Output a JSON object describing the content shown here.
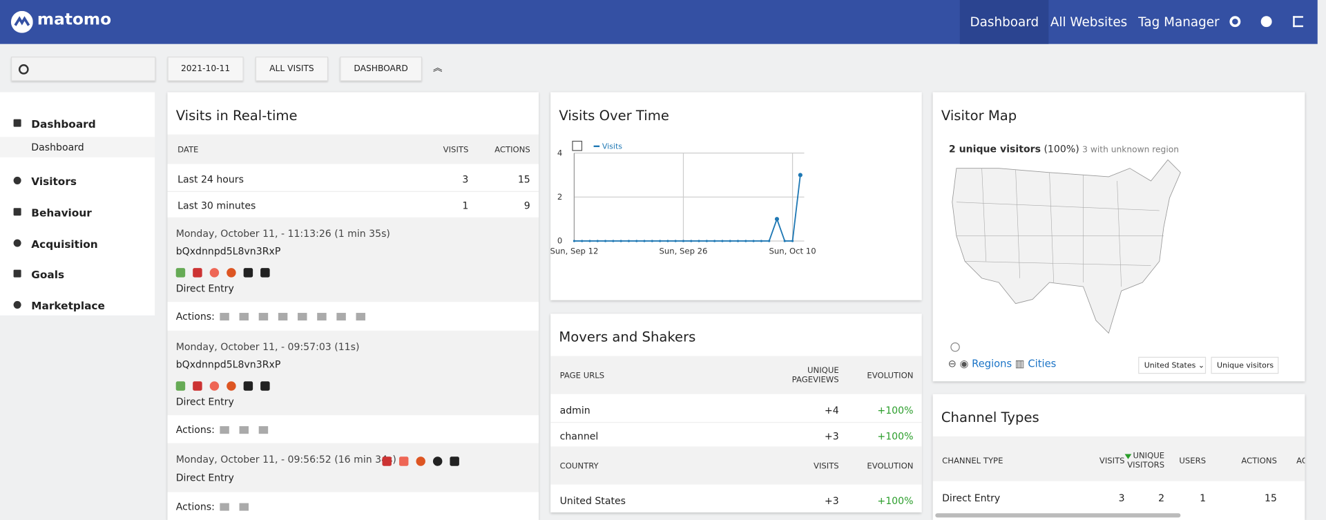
{
  "header": {
    "logo": "matomo",
    "nav": [
      "Dashboard",
      "All Websites",
      "Tag Manager"
    ]
  },
  "toolbar": {
    "date": "2021-10-11",
    "segment": "ALL VISITS",
    "dashboard": "DASHBOARD"
  },
  "sidebar": {
    "items": [
      "Dashboard",
      "Visitors",
      "Behaviour",
      "Acquisition",
      "Goals",
      "Marketplace"
    ],
    "subitem": "Dashboard"
  },
  "realtime": {
    "title": "Visits in Real-time",
    "columns": [
      "DATE",
      "VISITS",
      "ACTIONS"
    ],
    "rows": [
      [
        "Last 24 hours",
        3,
        15
      ],
      [
        "Last 30 minutes",
        1,
        9
      ]
    ],
    "actions_label": "Actions:",
    "visits": [
      {
        "time": "Monday, October 11, - 11:13:26 (1 min 35s)",
        "visitor": "bQxdnnpd5L8vn3RxP",
        "referrer": "Direct Entry"
      },
      {
        "time": "Monday, October 11, - 09:57:03 (11s)",
        "visitor": "bQxdnnpd5L8vn3RxP",
        "referrer": "Direct Entry"
      },
      {
        "time": "Monday, October 11, - 09:56:52 (16 min 34s)",
        "referrer": "Direct Entry"
      }
    ]
  },
  "chart_data": {
    "type": "line",
    "title": "Visits Over Time",
    "series": [
      {
        "name": "Visits",
        "color": "#1f78b4",
        "values": [
          0,
          0,
          0,
          0,
          0,
          0,
          0,
          0,
          0,
          0,
          0,
          0,
          0,
          0,
          0,
          0,
          0,
          0,
          0,
          0,
          0,
          0,
          0,
          0,
          0,
          0,
          1,
          0,
          0,
          3
        ]
      }
    ],
    "xlim": [
      0,
      29.5
    ],
    "xticks": [
      {
        "value": 0,
        "label": "Sun, Sep 12"
      },
      {
        "value": 14,
        "label": "Sun, Sep 26"
      },
      {
        "value": 28,
        "label": "Sun, Oct 10"
      }
    ],
    "ylim": [
      0,
      4
    ],
    "yticks": [
      0,
      2,
      4
    ],
    "grid": true
  },
  "movers": {
    "title": "Movers and Shakers",
    "pages": {
      "columns": [
        "PAGE URLS",
        "UNIQUE PAGEVIEWS",
        "EVOLUTION"
      ],
      "rows": [
        [
          "admin",
          "+4",
          "+100%"
        ],
        [
          "channel",
          "+3",
          "+100%"
        ]
      ]
    },
    "countries": {
      "columns": [
        "COUNTRY",
        "VISITS",
        "EVOLUTION"
      ],
      "rows": [
        [
          "United States",
          "+3",
          "+100%"
        ]
      ]
    }
  },
  "map": {
    "title": "Visitor Map",
    "visitors": "2 unique visitors",
    "share": "(100%)",
    "unknown": "3 with unknown region",
    "regions": "Regions",
    "cities": "Cities",
    "country": "United States",
    "metric": "Unique visitors"
  },
  "channels": {
    "title": "Channel Types",
    "columns": [
      "CHANNEL TYPE",
      "VISITS",
      "UNIQUE VISITORS",
      "USERS",
      "ACTIONS",
      "AC"
    ],
    "rows": [
      [
        "Direct Entry",
        3,
        2,
        1,
        15
      ]
    ]
  }
}
